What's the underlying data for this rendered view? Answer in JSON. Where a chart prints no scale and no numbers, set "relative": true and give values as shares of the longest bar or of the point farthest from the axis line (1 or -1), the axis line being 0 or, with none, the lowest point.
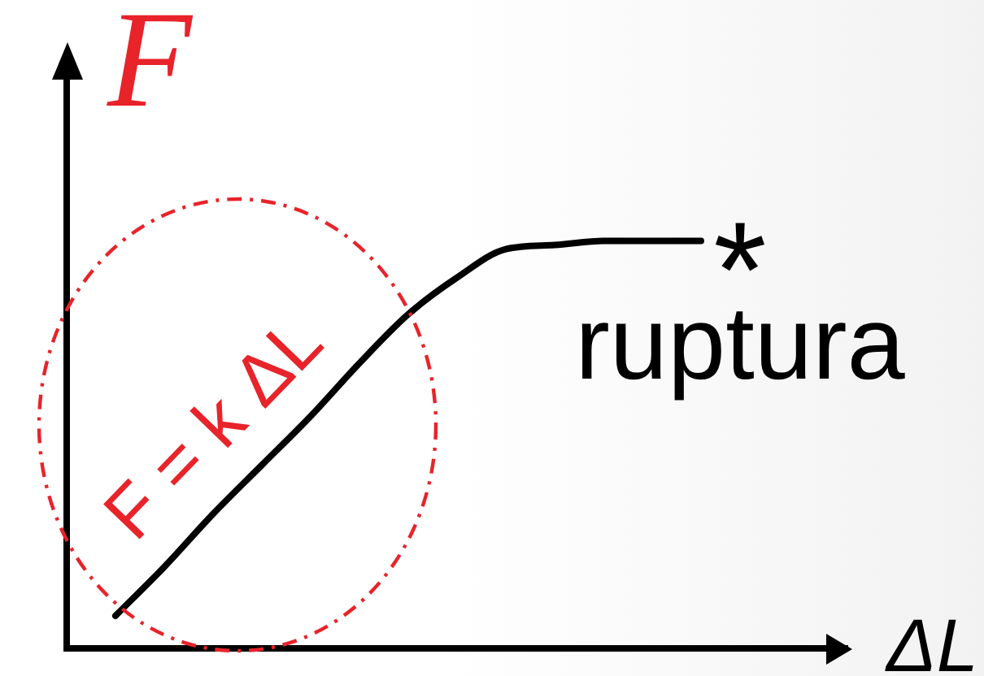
{
  "chart_data": {
    "type": "line",
    "xlabel": "ΔL",
    "ylabel": "F",
    "annotations": [
      "F = k ΔL",
      "*",
      "ruptura"
    ],
    "categories": [
      null,
      null,
      null,
      null,
      null,
      null,
      null,
      null,
      null,
      null,
      null,
      null,
      null,
      null,
      null,
      null,
      null
    ],
    "relative": true,
    "values": [
      null,
      0.08,
      0.2,
      0.33,
      0.45,
      0.57,
      0.7,
      0.82,
      0.91,
      0.98,
      0.99,
      1,
      1,
      1,
      null,
      null,
      null
    ],
    "color": "#000000",
    "marker": "none",
    "line_style": "solid",
    "grid": false,
    "legend": false
  }
}
